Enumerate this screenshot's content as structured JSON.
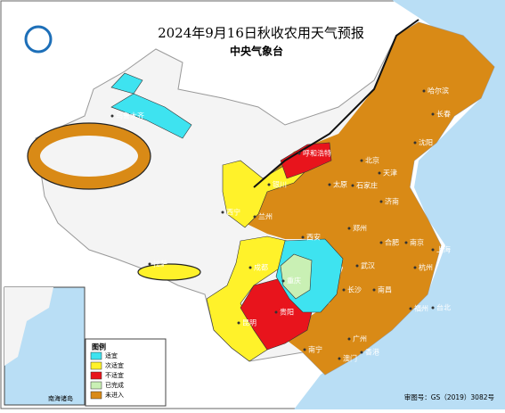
{
  "header": {
    "title": "2024年9月16日秋收农用天气预报",
    "subtitle": "中央气象台"
  },
  "legend": {
    "title": "图例",
    "items": [
      {
        "label": "适宜",
        "color": "#3ee3f0"
      },
      {
        "label": "次适宜",
        "color": "#fff22a"
      },
      {
        "label": "不适宜",
        "color": "#e8141c"
      },
      {
        "label": "已完成",
        "color": "#c9f0b4"
      },
      {
        "label": "未进入",
        "color": "#d98a16"
      }
    ]
  },
  "cities": [
    "哈尔滨",
    "长春",
    "沈阳",
    "呼和浩特",
    "北京",
    "天津",
    "银川",
    "太原",
    "石家庄",
    "济南",
    "西宁",
    "兰州",
    "郑州",
    "西安",
    "合肥",
    "南京",
    "上海",
    "成都",
    "武汉",
    "杭州",
    "重庆",
    "长沙",
    "南昌",
    "贵阳",
    "福州",
    "台北",
    "昆明",
    "南宁",
    "广州",
    "香港",
    "澳门",
    "拉萨",
    "乌鲁木齐"
  ],
  "footer": {
    "approval": "审图号：GS（2019）3082号",
    "inset": "南海诸岛"
  }
}
